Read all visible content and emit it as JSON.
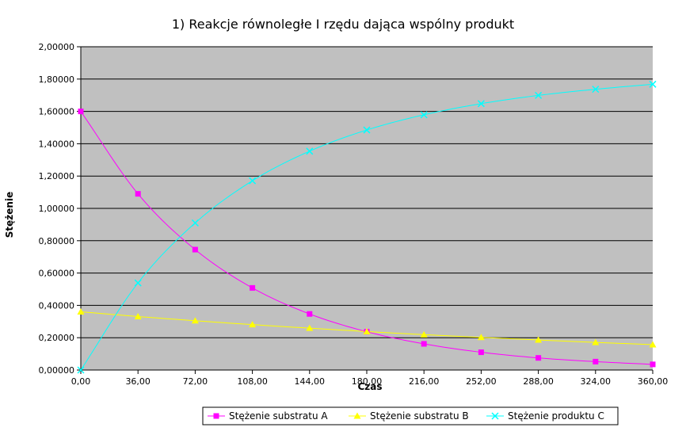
{
  "chart_data": {
    "type": "line",
    "title": "1) Reakcje równoległe I rzędu dająca wspólny produkt",
    "xlabel": "Czas",
    "ylabel": "Stężenie",
    "xlim": [
      0,
      360
    ],
    "ylim": [
      0,
      2
    ],
    "x_ticks": [
      "0,00",
      "36,00",
      "72,00",
      "108,00",
      "144,00",
      "180,00",
      "216,00",
      "252,00",
      "288,00",
      "324,00",
      "360,00"
    ],
    "y_ticks": [
      "0,00000",
      "0,20000",
      "0,40000",
      "0,60000",
      "0,80000",
      "1,00000",
      "1,20000",
      "1,40000",
      "1,60000",
      "1,80000",
      "2,00000"
    ],
    "x": [
      0,
      36,
      72,
      108,
      144,
      180,
      216,
      252,
      288,
      324,
      360
    ],
    "grid": true,
    "plot_background": "#c0c0c0",
    "legend_position": "bottom",
    "series": [
      {
        "name": "Stężenie substratu A",
        "color": "#ff00ff",
        "marker": "square",
        "values": [
          1.6,
          1.09,
          0.745,
          0.508,
          0.347,
          0.237,
          0.162,
          0.11,
          0.075,
          0.052,
          0.035
        ]
      },
      {
        "name": "Stężenie substratu B",
        "color": "#ffff00",
        "marker": "triangle",
        "values": [
          0.36,
          0.331,
          0.305,
          0.281,
          0.259,
          0.238,
          0.219,
          0.202,
          0.186,
          0.171,
          0.157
        ]
      },
      {
        "name": "Stężenie produktu C",
        "color": "#00ffff",
        "marker": "x",
        "values": [
          0.0,
          0.539,
          0.91,
          1.171,
          1.354,
          1.485,
          1.579,
          1.648,
          1.699,
          1.737,
          1.768
        ]
      }
    ]
  }
}
